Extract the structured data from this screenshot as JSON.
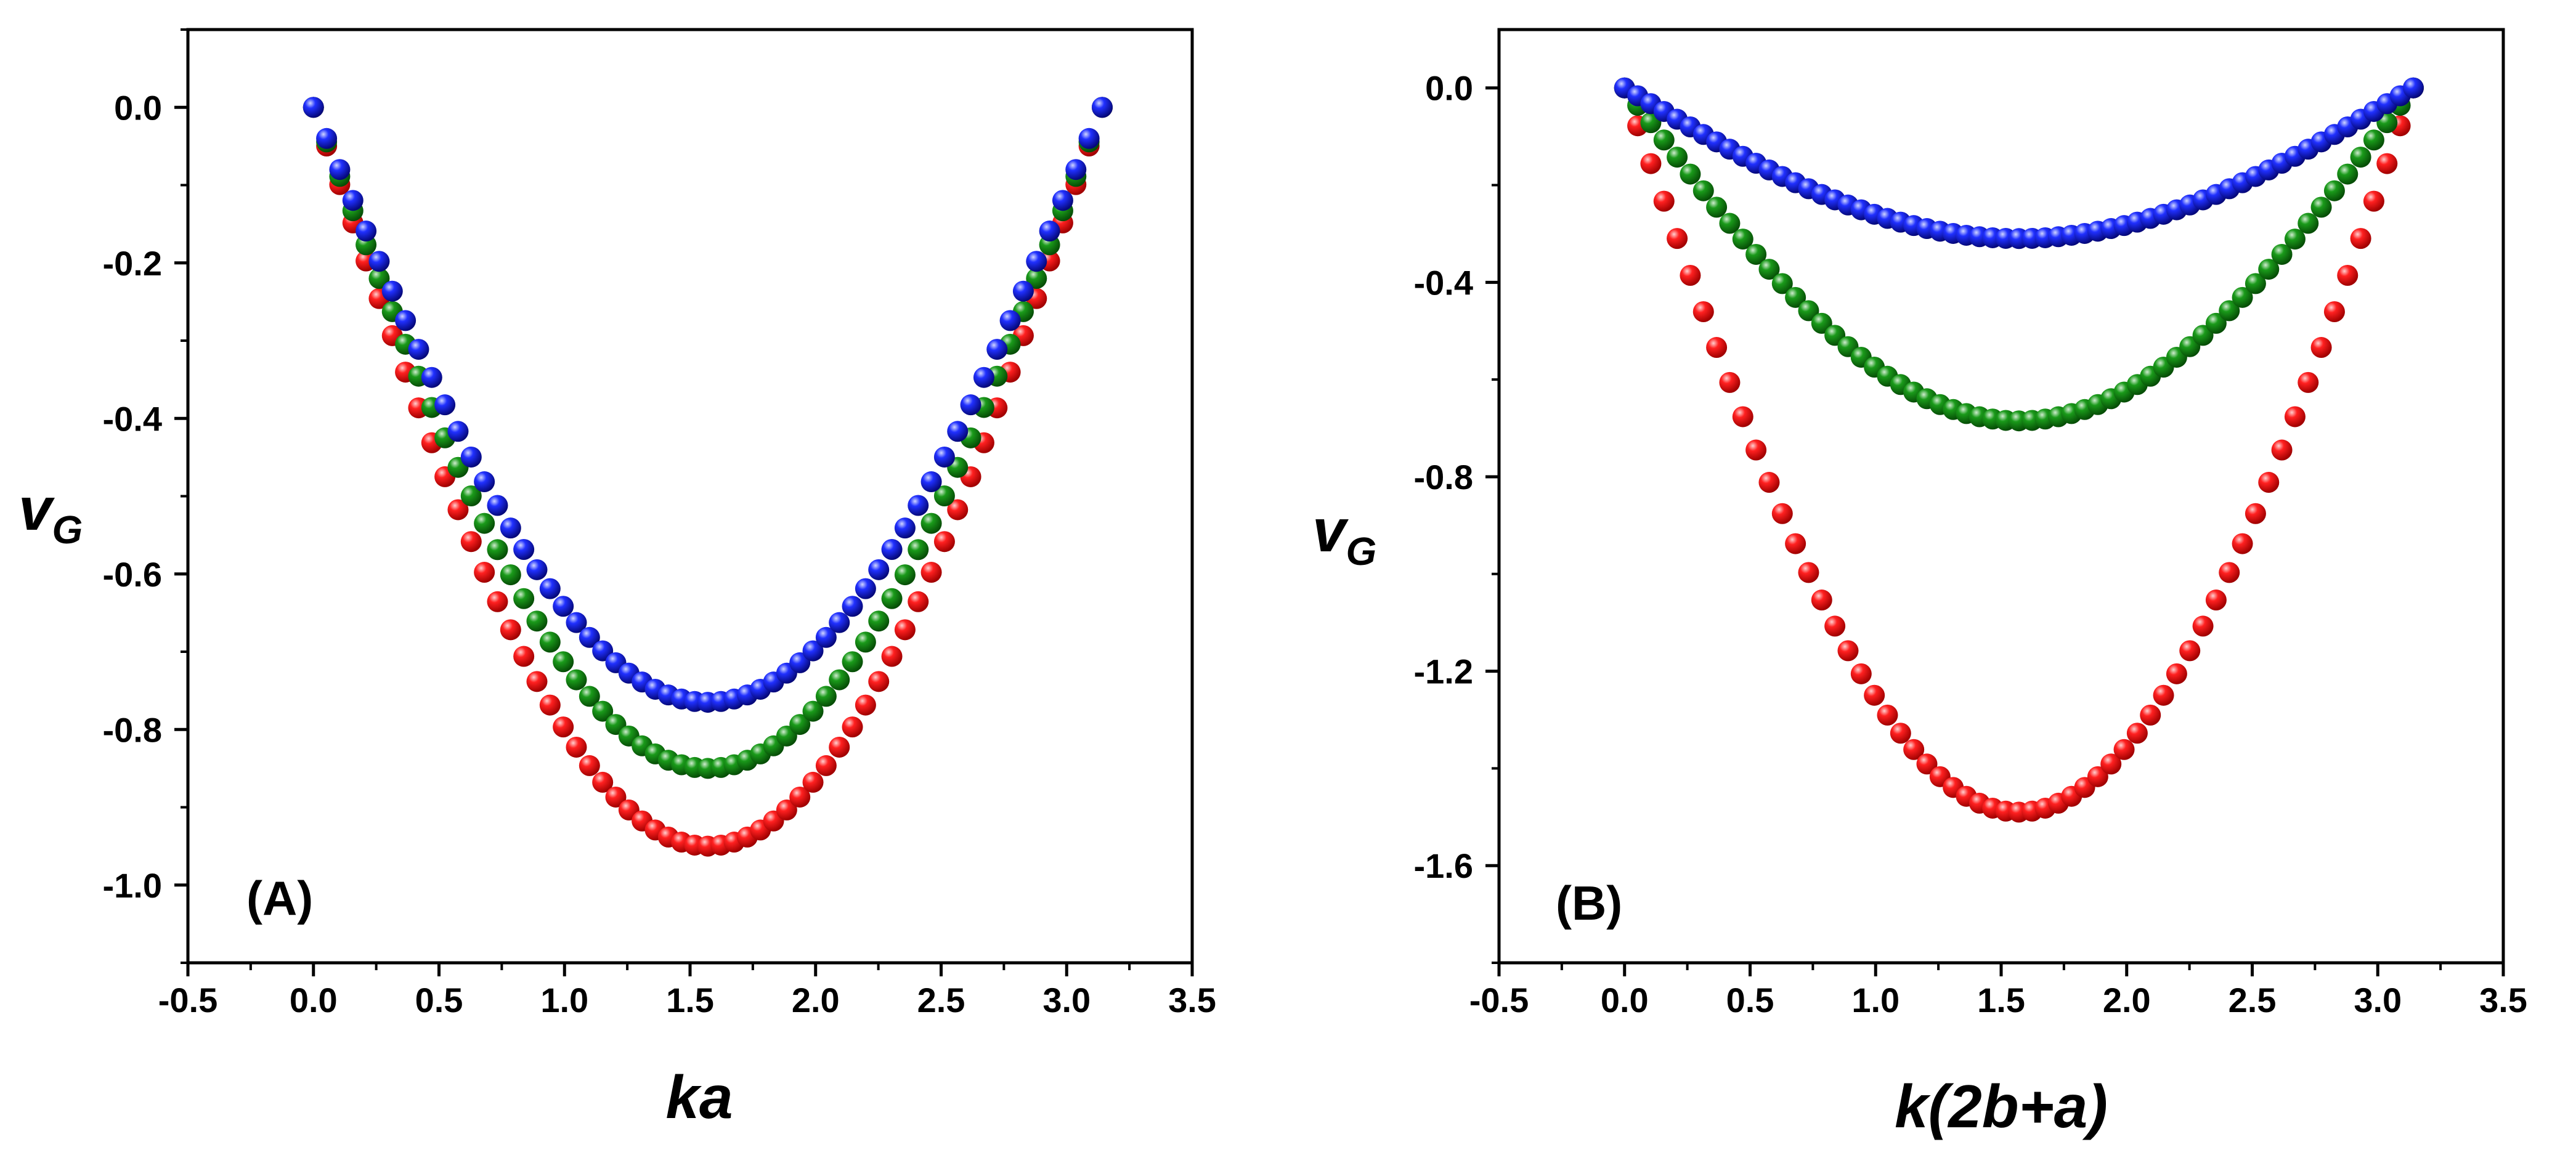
{
  "colors": {
    "red": "#e8000b",
    "green": "#0b7a0b",
    "blue": "#0a14e6",
    "axis": "#000000"
  },
  "chart_data": [
    {
      "type": "scatter",
      "panel_label": "(A)",
      "xlabel": "ka",
      "ylabel_main": "v",
      "ylabel_sub": "G",
      "xlim": [
        -0.5,
        3.5
      ],
      "ylim": [
        -1.1,
        0.1
      ],
      "xticks": [
        -0.5,
        0.0,
        0.5,
        1.0,
        1.5,
        2.0,
        2.5,
        3.0,
        3.5
      ],
      "xtick_labels": [
        "-0.5",
        "0.0",
        "0.5",
        "1.0",
        "1.5",
        "2.0",
        "2.5",
        "3.0",
        "3.5"
      ],
      "yticks": [
        0.0,
        -0.2,
        -0.4,
        -0.6,
        -0.8,
        -1.0
      ],
      "ytick_labels": [
        "0.0",
        "-0.2",
        "-0.4",
        "-0.6",
        "-0.8",
        "-1.0"
      ],
      "x_range": [
        0,
        3.14159
      ],
      "n_points": 60,
      "series": [
        {
          "name": "red",
          "color": "#e8000b",
          "min": -0.95
        },
        {
          "name": "green",
          "color": "#0b7a0b",
          "min": -0.85
        },
        {
          "name": "blue",
          "color": "#0a14e6",
          "min": -0.765
        }
      ]
    },
    {
      "type": "scatter",
      "panel_label": "(B)",
      "xlabel": "k(2b+a)",
      "ylabel_main": "v",
      "ylabel_sub": "G",
      "xlim": [
        -0.5,
        3.5
      ],
      "ylim": [
        -1.8,
        0.12
      ],
      "xticks": [
        -0.5,
        0.0,
        0.5,
        1.0,
        1.5,
        2.0,
        2.5,
        3.0,
        3.5
      ],
      "xtick_labels": [
        "-0.5",
        "0.0",
        "0.5",
        "1.0",
        "1.5",
        "2.0",
        "2.5",
        "3.0",
        "3.5"
      ],
      "yticks": [
        0.0,
        -0.4,
        -0.8,
        -1.2,
        -1.6
      ],
      "ytick_labels": [
        "0.0",
        "-0.4",
        "-0.8",
        "-1.2",
        "-1.6"
      ],
      "x_range": [
        0,
        3.14159
      ],
      "n_points": 60,
      "series": [
        {
          "name": "red",
          "color": "#e8000b",
          "min": -1.49
        },
        {
          "name": "green",
          "color": "#0b7a0b",
          "min": -0.685
        },
        {
          "name": "blue",
          "color": "#0a14e6",
          "min": -0.31
        }
      ]
    }
  ]
}
